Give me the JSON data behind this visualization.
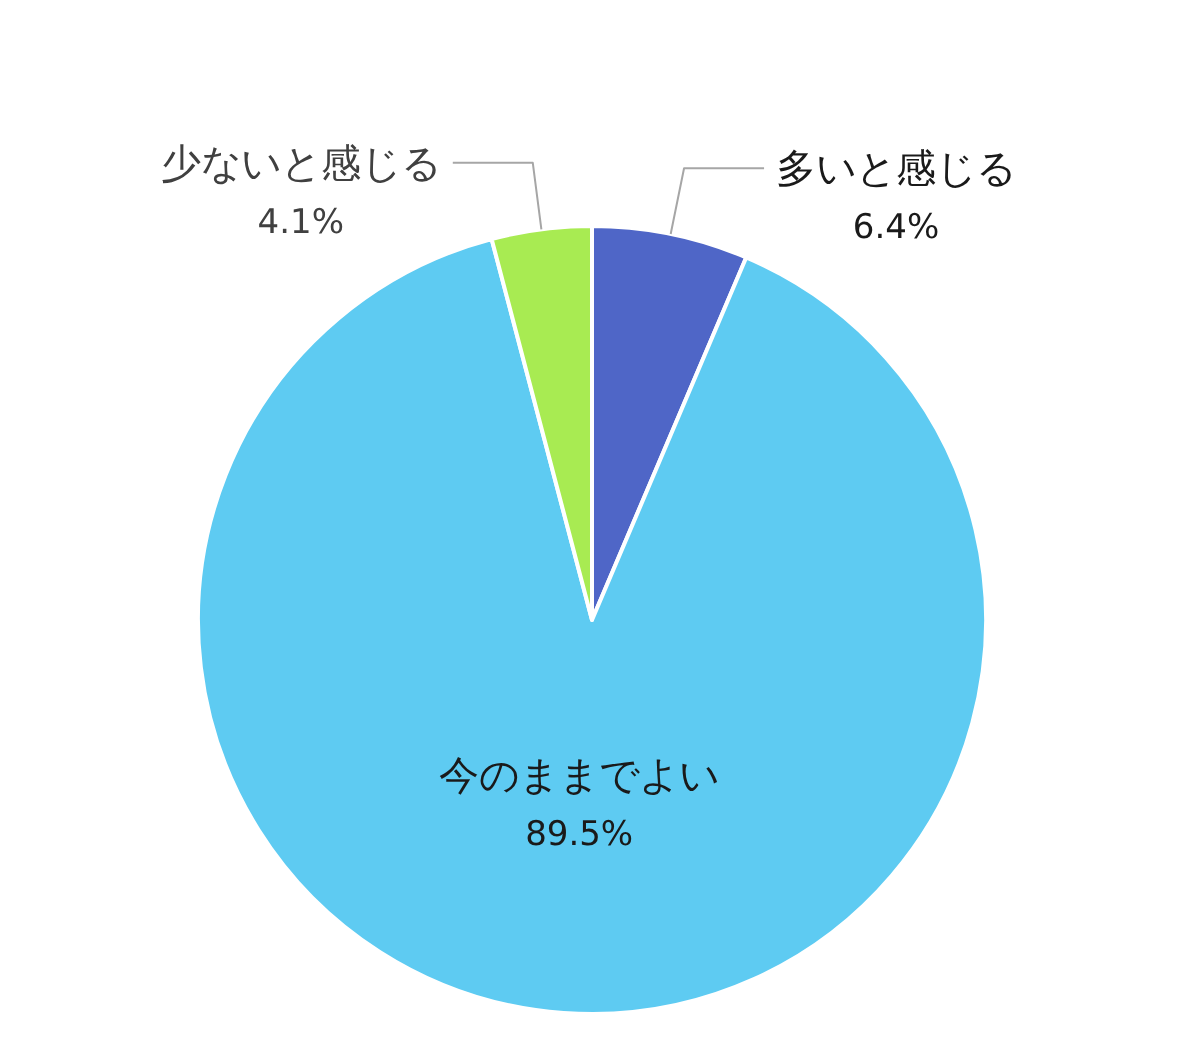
{
  "chart_data": {
    "type": "pie",
    "categories": [
      "多いと感じる",
      "今のままでよい",
      "少ないと感じる"
    ],
    "values": [
      6.4,
      89.5,
      4.1
    ],
    "value_labels": [
      "6.4%",
      "89.5%",
      "4.1%"
    ],
    "colors": [
      "#4f66c7",
      "#5ecbf2",
      "#a8eb52"
    ]
  }
}
